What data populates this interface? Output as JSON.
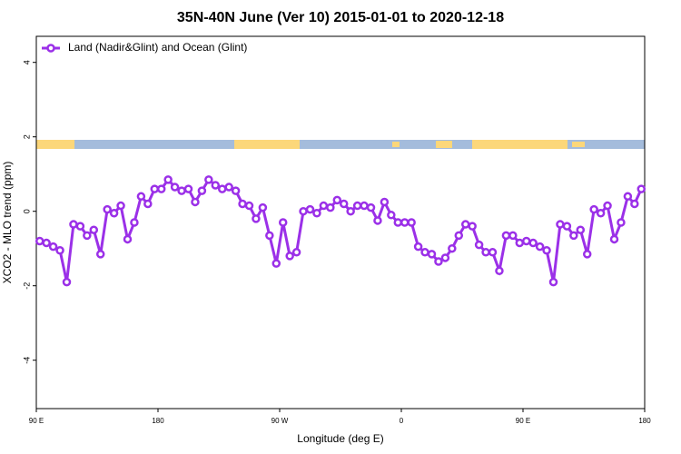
{
  "chart_data": {
    "type": "line",
    "title": "35N-40N June (Ver 10)   2015-01-01 to 2020-12-18",
    "x_label": "Longitude (deg E)",
    "y_label": "XCO2 - MLO trend (ppm)",
    "xlim": [
      90,
      540
    ],
    "ylim": [
      -5.3,
      4.7
    ],
    "xticks": [
      {
        "value": 90,
        "label": "90 E"
      },
      {
        "value": 180,
        "label": "180"
      },
      {
        "value": 270,
        "label": "90 W"
      },
      {
        "value": 360,
        "label": "0"
      },
      {
        "value": 450,
        "label": "90 E"
      },
      {
        "value": 540,
        "label": "180"
      }
    ],
    "yticks": [
      -4,
      -2,
      0,
      2,
      4
    ],
    "legend": "top-left",
    "x": [
      92.5,
      97.5,
      102.5,
      107.5,
      112.5,
      117.5,
      122.5,
      127.5,
      132.5,
      137.5,
      142.5,
      147.5,
      152.5,
      157.5,
      162.5,
      167.5,
      172.5,
      177.5,
      182.5,
      187.5,
      192.5,
      197.5,
      202.5,
      207.5,
      212.5,
      217.5,
      222.5,
      227.5,
      232.5,
      237.5,
      242.5,
      247.5,
      252.5,
      257.5,
      262.5,
      267.5,
      272.5,
      277.5,
      282.5,
      287.5,
      292.5,
      297.5,
      302.5,
      307.5,
      312.5,
      317.5,
      322.5,
      327.5,
      332.5,
      337.5,
      342.5,
      347.5,
      352.5,
      357.5,
      362.5,
      367.5,
      372.5,
      377.5,
      382.5,
      387.5,
      392.5,
      397.5,
      402.5,
      407.5,
      412.5,
      417.5,
      422.5,
      427.5,
      432.5,
      437.5,
      442.5,
      447.5,
      452.5,
      457.5,
      462.5,
      467.5,
      472.5,
      477.5,
      482.5,
      487.5,
      492.5,
      497.5,
      502.5,
      507.5,
      512.5,
      517.5,
      522.5,
      527.5,
      532.5,
      537.5
    ],
    "series": [
      {
        "name": "Land (Nadir&Glint) and Ocean (Glint)",
        "color": "#9b30e8",
        "values": [
          -0.8,
          -0.85,
          -0.95,
          -1.05,
          -1.9,
          -0.35,
          -0.4,
          -0.65,
          -0.5,
          -1.15,
          0.05,
          -0.05,
          0.15,
          -0.75,
          -0.3,
          0.4,
          0.2,
          0.6,
          0.6,
          0.85,
          0.65,
          0.55,
          0.6,
          0.25,
          0.55,
          0.85,
          0.7,
          0.6,
          0.65,
          0.55,
          0.2,
          0.15,
          -0.2,
          0.1,
          -0.65,
          -1.4,
          -0.3,
          -1.2,
          -1.1,
          0.0,
          0.05,
          -0.05,
          0.15,
          0.1,
          0.3,
          0.2,
          0.0,
          0.15,
          0.15,
          0.1,
          -0.25,
          0.25,
          -0.1,
          -0.3,
          -0.3,
          -0.3,
          -0.95,
          -1.1,
          -1.15,
          -1.35,
          -1.25,
          -1.0,
          -0.65,
          -0.35,
          -0.4,
          -0.9,
          -1.1,
          -1.1,
          -1.6,
          -0.65,
          -0.65,
          -0.85,
          -0.8,
          -0.85,
          -0.95,
          -1.05,
          -1.9,
          -0.35,
          -0.4,
          -0.65,
          -0.5,
          -1.15,
          0.05,
          -0.05,
          0.15,
          -0.75,
          -0.3,
          0.4,
          0.2,
          0.6
        ]
      }
    ]
  }
}
